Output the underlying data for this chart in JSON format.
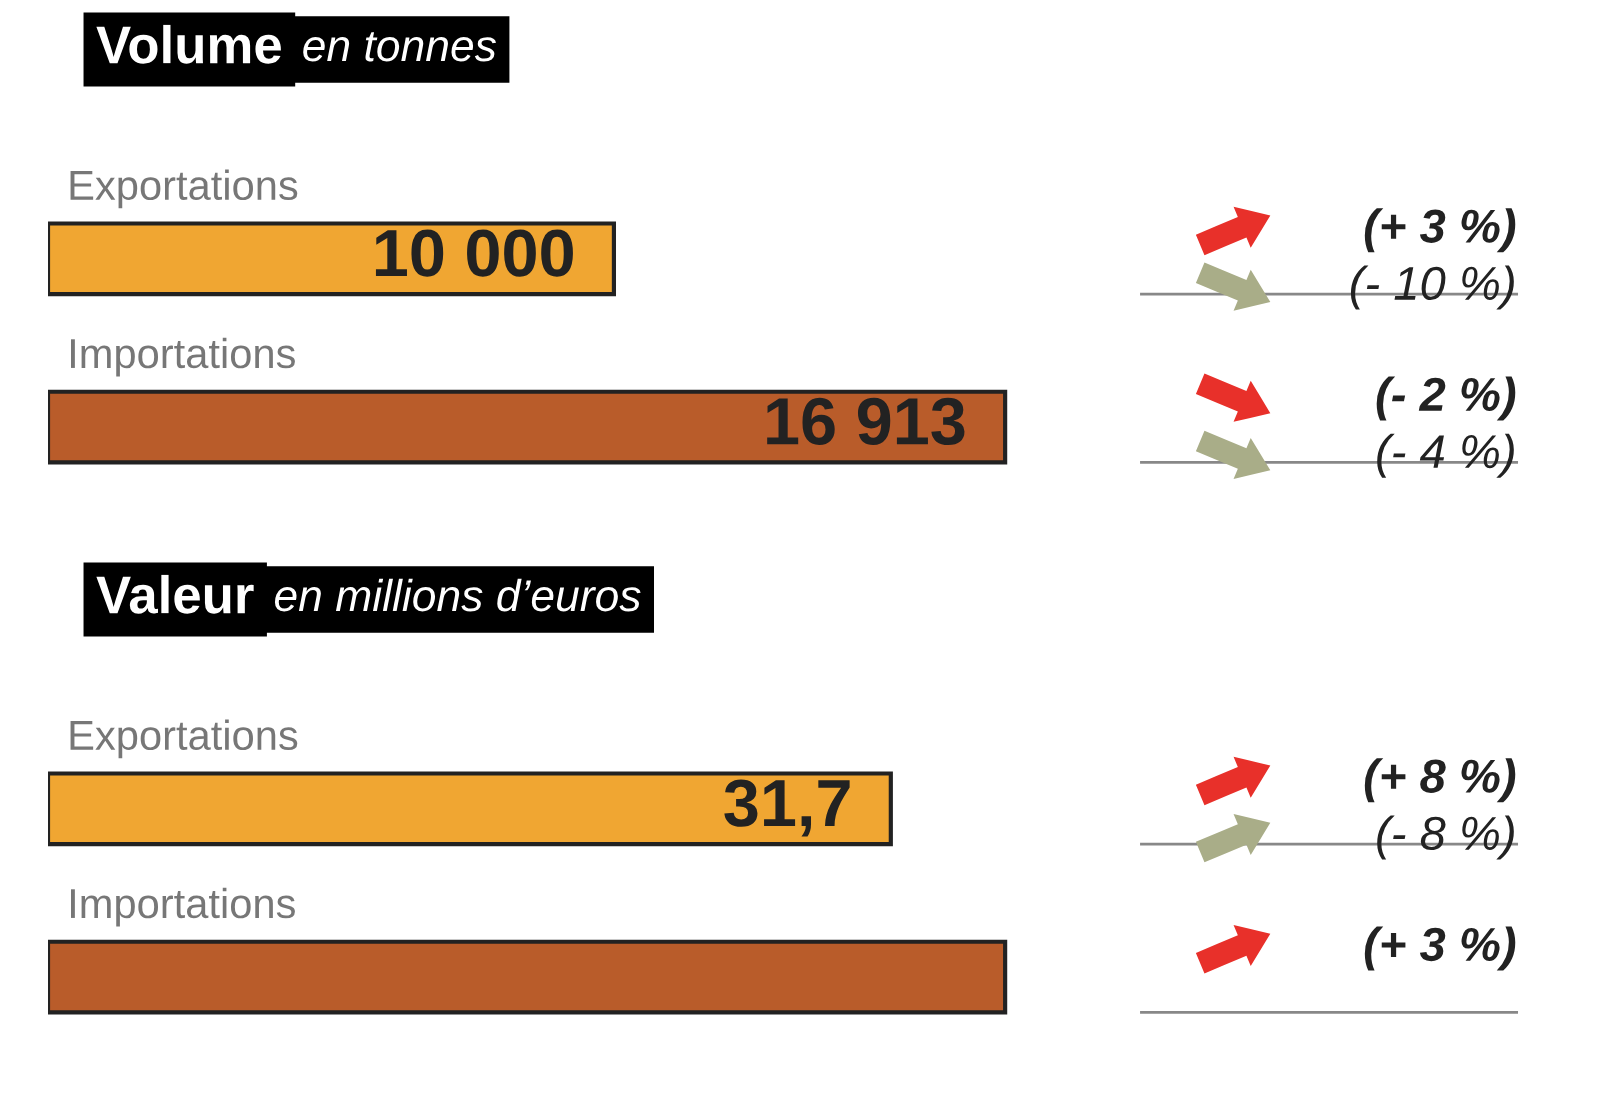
{
  "chart_data": [
    {
      "type": "bar",
      "orientation": "horizontal",
      "title": "Volume",
      "subtitle": "en tonnes",
      "categories": [
        "Exportations",
        "Importations"
      ],
      "values": [
        10000,
        16913
      ],
      "colors": [
        "#f0a632",
        "#b95c2a"
      ],
      "value_labels": [
        "10 000",
        "16 913"
      ],
      "annotations": [
        "(+ 3 %)",
        "(- 10 %)",
        "(- 2 %)",
        "(- 4 %)"
      ]
    },
    {
      "type": "bar",
      "orientation": "horizontal",
      "title": "Valeur",
      "subtitle": "en millions d’euros",
      "categories": [
        "Exportations",
        "Importations"
      ],
      "values": [
        31.7,
        36
      ],
      "colors": [
        "#f0a632",
        "#b95c2a"
      ],
      "value_labels": [
        "31,7",
        null
      ],
      "annotations": [
        "(+ 8 %)",
        "(- 8 %)",
        "(+ 3 %)"
      ]
    }
  ]
}
